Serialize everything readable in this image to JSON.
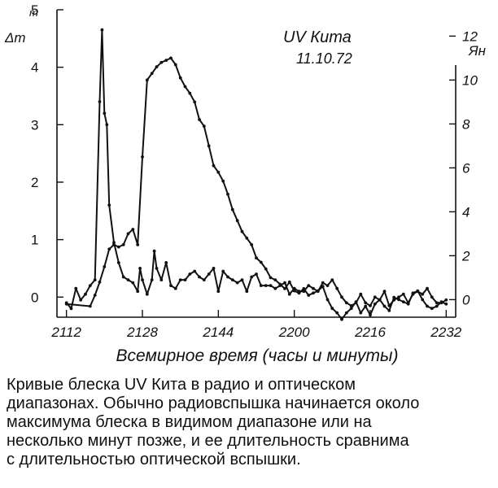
{
  "chart_data": {
    "type": "line",
    "title": "UV Кита",
    "subtitle": "11.10.72",
    "xlabel": "Всемирное время (часы и минуты)",
    "ylabel_left": "Δm",
    "ylabel_left_unit": "m",
    "ylabel_right": "Ян",
    "x_tick_labels": [
      "2112",
      "2128",
      "2144",
      "2200",
      "2216",
      "2232"
    ],
    "x_ticks_minutes": [
      0,
      16,
      32,
      48,
      64,
      80
    ],
    "xlim": [
      -2,
      82
    ],
    "y_left_tick_labels": [
      "0",
      "1",
      "2",
      "3",
      "4",
      "5"
    ],
    "ylim_left": [
      -0.35,
      5.0
    ],
    "y_right_tick_labels": [
      "0",
      "2",
      "4",
      "6",
      "8",
      "10",
      "12"
    ],
    "ylim_right": [
      -0.8,
      13.2
    ],
    "grid": false,
    "legend": "none",
    "series": [
      {
        "axis": "left",
        "x": [
          0,
          1,
          2,
          3,
          4,
          5,
          6,
          7,
          7.5,
          8,
          8.5,
          9,
          10,
          11,
          12,
          13,
          14,
          15,
          15.5,
          16,
          17,
          18,
          18.5,
          19,
          20,
          21,
          22,
          23,
          24,
          25,
          26,
          27,
          28,
          29,
          30,
          31,
          32,
          33,
          34,
          35,
          36,
          37,
          38,
          39,
          40,
          41,
          42,
          43,
          44,
          45,
          46,
          47,
          48,
          49,
          50,
          51,
          52,
          53,
          54,
          55,
          56,
          57,
          58,
          59,
          60,
          61,
          62,
          63,
          64,
          65,
          66,
          67,
          68,
          69,
          70,
          71,
          72,
          73,
          74,
          75,
          76,
          77,
          78,
          79,
          80
        ],
        "y": [
          -0.1,
          -0.2,
          0.15,
          -0.05,
          0.05,
          0.2,
          0.3,
          3.4,
          4.65,
          3.2,
          3.0,
          1.6,
          0.95,
          0.6,
          0.35,
          0.3,
          0.25,
          0.1,
          0.5,
          0.3,
          0.05,
          0.3,
          0.8,
          0.5,
          0.3,
          0.6,
          0.2,
          0.15,
          0.3,
          0.3,
          0.4,
          0.45,
          0.35,
          0.3,
          0.4,
          0.5,
          0.1,
          0.45,
          0.35,
          0.3,
          0.25,
          0.3,
          0.1,
          0.35,
          0.4,
          0.2,
          0.2,
          0.2,
          0.15,
          0.2,
          0.25,
          0.05,
          0.15,
          0.1,
          0.1,
          0.2,
          0.15,
          0.1,
          0.25,
          0.2,
          0.3,
          0.15,
          0.0,
          -0.1,
          -0.15,
          -0.1,
          0.05,
          -0.1,
          -0.15,
          0.0,
          -0.05,
          0.1,
          -0.15,
          -0.05,
          0.0,
          0.05,
          -0.1,
          0.05,
          0.1,
          0.05,
          0.15,
          0.0,
          -0.1,
          -0.1,
          -0.05
        ]
      },
      {
        "axis": "right",
        "x": [
          0,
          5,
          6,
          7,
          8,
          9,
          10,
          11,
          12,
          13,
          14,
          15,
          16,
          17,
          18,
          19,
          20,
          21,
          22,
          23,
          24,
          25,
          26,
          27,
          28,
          29,
          30,
          31,
          32,
          33,
          34,
          35,
          36,
          37,
          38,
          39,
          40,
          41,
          42,
          43,
          44,
          45,
          46,
          47,
          48,
          49,
          50,
          51,
          52,
          53,
          54,
          55,
          56,
          57,
          58,
          59,
          60,
          61,
          62,
          63,
          64,
          65,
          66,
          67,
          68,
          69,
          70,
          71,
          72,
          73,
          74,
          75,
          76,
          77,
          78,
          79,
          80
        ],
        "y": [
          -0.2,
          -0.3,
          0.2,
          0.8,
          1.5,
          2.3,
          2.5,
          2.4,
          2.5,
          3.0,
          3.2,
          2.5,
          6.5,
          10.0,
          10.3,
          10.6,
          10.8,
          10.9,
          11.0,
          10.7,
          10.1,
          9.7,
          9.4,
          9.0,
          8.2,
          7.9,
          7.0,
          6.1,
          5.8,
          5.4,
          4.8,
          4.1,
          3.6,
          3.1,
          2.8,
          2.5,
          1.9,
          1.7,
          1.4,
          1.0,
          0.9,
          0.7,
          0.5,
          0.8,
          0.4,
          0.3,
          0.5,
          0.2,
          0.3,
          0.4,
          0.6,
          0.0,
          -0.4,
          -0.6,
          -0.9,
          -0.6,
          -0.4,
          -0.1,
          -0.6,
          -0.3,
          -0.7,
          -0.2,
          0.0,
          -0.3,
          -0.5,
          0.1,
          0.0,
          -0.1,
          -0.2,
          0.3,
          0.4,
          0.0,
          -0.3,
          -0.4,
          -0.3,
          -0.1,
          -0.2
        ]
      }
    ]
  },
  "caption": [
    "Кривые блеска UV Кита в радио и оптическом",
    "диапазонах. Обычно радиовспышка начинается около",
    "максимума блеска в видимом диапазоне или на",
    "несколько минут позже, и ее длительность сравнима",
    "с длительностью оптической вспышки."
  ]
}
